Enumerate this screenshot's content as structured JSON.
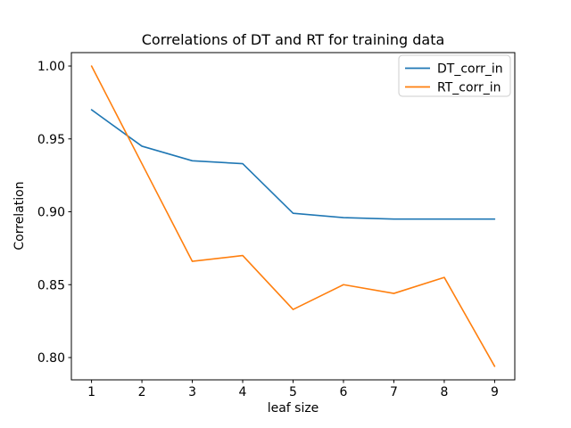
{
  "figure": {
    "title": "Correlations of DT and RT for training data",
    "xlabel": "leaf size",
    "ylabel": "Correlation",
    "background_color": "#ffffff",
    "spine_color": "#000000"
  },
  "chart_data": {
    "type": "line",
    "title": "Correlations of DT and RT for training data",
    "xlabel": "leaf size",
    "ylabel": "Correlation",
    "x": [
      1,
      2,
      3,
      4,
      5,
      6,
      7,
      8,
      9
    ],
    "series": [
      {
        "name": "DT_corr_in",
        "color": "#1f77b4",
        "values": [
          0.97,
          0.945,
          0.935,
          0.933,
          0.899,
          0.896,
          0.895,
          0.895,
          0.895
        ]
      },
      {
        "name": "RT_corr_in",
        "color": "#ff7f0e",
        "values": [
          1.0,
          0.933,
          0.866,
          0.87,
          0.833,
          0.85,
          0.844,
          0.855,
          0.794
        ]
      }
    ],
    "xticks": [
      1,
      2,
      3,
      4,
      5,
      6,
      7,
      8,
      9
    ],
    "yticks": [
      0.8,
      0.85,
      0.9,
      0.95,
      1.0
    ],
    "xlim": [
      0.6,
      9.4
    ],
    "ylim": [
      0.7847,
      1.0092
    ],
    "grid": false,
    "legend": {
      "position": "upper right",
      "entries": [
        "DT_corr_in",
        "RT_corr_in"
      ],
      "edge_color": "#cccccc",
      "face_color": "#ffffff"
    }
  }
}
